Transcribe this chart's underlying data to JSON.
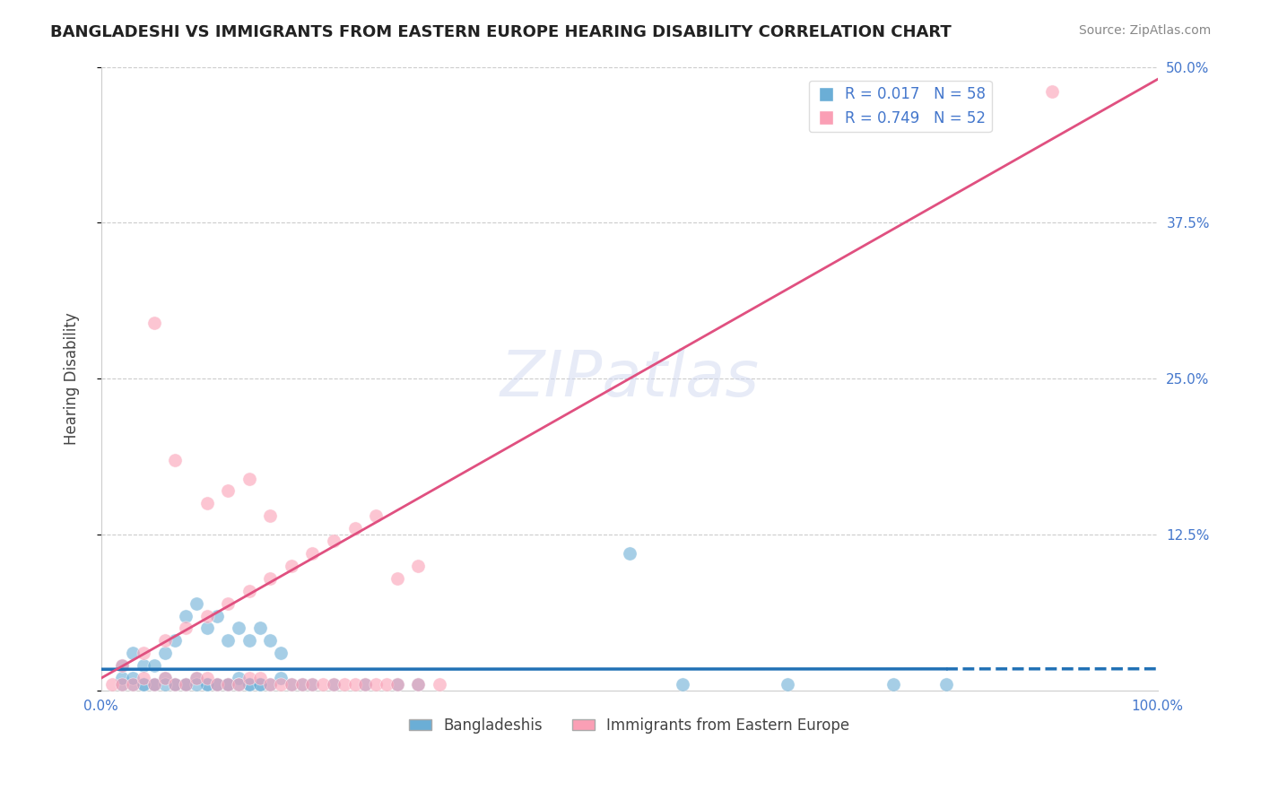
{
  "title": "BANGLADESHI VS IMMIGRANTS FROM EASTERN EUROPE HEARING DISABILITY CORRELATION CHART",
  "source": "Source: ZipAtlas.com",
  "xlabel": "",
  "ylabel": "Hearing Disability",
  "xlim": [
    0.0,
    1.0
  ],
  "ylim": [
    0.0,
    0.5
  ],
  "xticks": [
    0.0,
    0.25,
    0.5,
    0.75,
    1.0
  ],
  "xticklabels": [
    "0.0%",
    "",
    "",
    "",
    "100.0%"
  ],
  "yticks": [
    0.0,
    0.125,
    0.25,
    0.375,
    0.5
  ],
  "yticklabels": [
    "",
    "12.5%",
    "25.0%",
    "37.5%",
    "50.0%"
  ],
  "blue_R": 0.017,
  "blue_N": 58,
  "pink_R": 0.749,
  "pink_N": 52,
  "blue_color": "#6baed6",
  "pink_color": "#fa9fb5",
  "blue_line_color": "#2171b5",
  "pink_line_color": "#e05080",
  "title_color": "#222222",
  "axis_color": "#4477cc",
  "watermark": "ZIPatlas",
  "legend_label_blue": "Bangladeshis",
  "legend_label_pink": "Immigrants from Eastern Europe",
  "blue_scatter_x": [
    0.02,
    0.03,
    0.04,
    0.05,
    0.06,
    0.07,
    0.08,
    0.09,
    0.1,
    0.11,
    0.12,
    0.13,
    0.14,
    0.15,
    0.16,
    0.17,
    0.02,
    0.03,
    0.05,
    0.07,
    0.08,
    0.1,
    0.11,
    0.12,
    0.14,
    0.15,
    0.06,
    0.09,
    0.13,
    0.04,
    0.18,
    0.19,
    0.2,
    0.22,
    0.25,
    0.28,
    0.3,
    0.5,
    0.55,
    0.65,
    0.75,
    0.8,
    0.02,
    0.03,
    0.04,
    0.05,
    0.06,
    0.07,
    0.08,
    0.09,
    0.1,
    0.11,
    0.12,
    0.13,
    0.14,
    0.15,
    0.16,
    0.17
  ],
  "blue_scatter_y": [
    0.005,
    0.005,
    0.005,
    0.005,
    0.01,
    0.005,
    0.005,
    0.01,
    0.005,
    0.005,
    0.005,
    0.01,
    0.005,
    0.005,
    0.005,
    0.01,
    0.01,
    0.01,
    0.005,
    0.005,
    0.005,
    0.005,
    0.005,
    0.005,
    0.005,
    0.005,
    0.005,
    0.005,
    0.005,
    0.005,
    0.005,
    0.005,
    0.005,
    0.005,
    0.005,
    0.005,
    0.005,
    0.11,
    0.005,
    0.005,
    0.005,
    0.005,
    0.02,
    0.03,
    0.02,
    0.02,
    0.03,
    0.04,
    0.06,
    0.07,
    0.05,
    0.06,
    0.04,
    0.05,
    0.04,
    0.05,
    0.04,
    0.03
  ],
  "pink_scatter_x": [
    0.01,
    0.02,
    0.03,
    0.04,
    0.05,
    0.06,
    0.07,
    0.08,
    0.09,
    0.1,
    0.11,
    0.12,
    0.13,
    0.14,
    0.15,
    0.16,
    0.17,
    0.18,
    0.19,
    0.2,
    0.21,
    0.22,
    0.23,
    0.24,
    0.25,
    0.26,
    0.27,
    0.28,
    0.3,
    0.32,
    0.02,
    0.04,
    0.06,
    0.08,
    0.1,
    0.12,
    0.14,
    0.16,
    0.18,
    0.2,
    0.22,
    0.24,
    0.26,
    0.28,
    0.3,
    0.1,
    0.12,
    0.14,
    0.16,
    0.9,
    0.05,
    0.07
  ],
  "pink_scatter_y": [
    0.005,
    0.005,
    0.005,
    0.01,
    0.005,
    0.01,
    0.005,
    0.005,
    0.01,
    0.01,
    0.005,
    0.005,
    0.005,
    0.01,
    0.01,
    0.005,
    0.005,
    0.005,
    0.005,
    0.005,
    0.005,
    0.005,
    0.005,
    0.005,
    0.005,
    0.005,
    0.005,
    0.005,
    0.005,
    0.005,
    0.02,
    0.03,
    0.04,
    0.05,
    0.06,
    0.07,
    0.08,
    0.09,
    0.1,
    0.11,
    0.12,
    0.13,
    0.14,
    0.09,
    0.1,
    0.15,
    0.16,
    0.17,
    0.14,
    0.48,
    0.295,
    0.185
  ]
}
